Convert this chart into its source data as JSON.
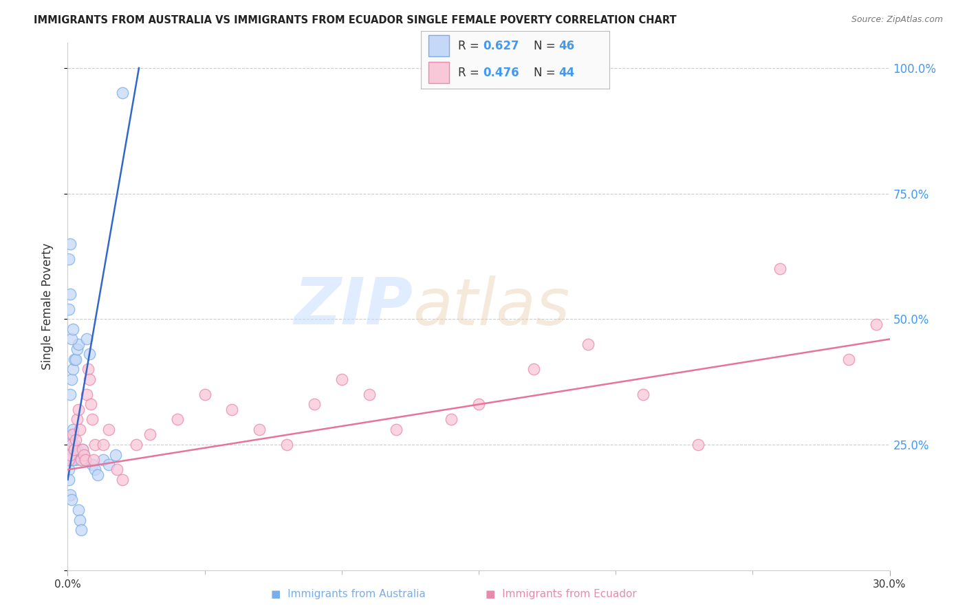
{
  "title": "IMMIGRANTS FROM AUSTRALIA VS IMMIGRANTS FROM ECUADOR SINGLE FEMALE POVERTY CORRELATION CHART",
  "source": "Source: ZipAtlas.com",
  "ylabel": "Single Female Poverty",
  "x_range": [
    0.0,
    0.3
  ],
  "y_range": [
    0.0,
    1.05
  ],
  "legend_r1": "0.627",
  "legend_n1": "46",
  "legend_r2": "0.476",
  "legend_n2": "44",
  "australia_scatter_face": "#C5D8F7",
  "australia_scatter_edge": "#7BAEE8",
  "ecuador_scatter_face": "#F9C8D8",
  "ecuador_scatter_edge": "#E88AAA",
  "australia_line_color": "#3366CC",
  "ecuador_line_color": "#E8739A",
  "right_axis_color": "#4499EE",
  "label_color": "#333333",
  "grid_color": "#CCCCCC",
  "background_color": "#FFFFFF",
  "watermark_zip": "ZIP",
  "watermark_atlas": "atlas",
  "watermark_color": "#D0E8FF",
  "aus_line_x0": 0.0,
  "aus_line_y0": 0.18,
  "aus_line_x1": 0.026,
  "aus_line_y1": 1.0,
  "ecu_line_x0": 0.0,
  "ecu_line_y0": 0.2,
  "ecu_line_x1": 0.3,
  "ecu_line_y1": 0.46,
  "australia_x": [
    0.0005,
    0.001,
    0.0015,
    0.0005,
    0.002,
    0.001,
    0.0015,
    0.002,
    0.0025,
    0.003,
    0.0035,
    0.004,
    0.005,
    0.0055,
    0.006,
    0.0065,
    0.001,
    0.0015,
    0.002,
    0.0025,
    0.003,
    0.0035,
    0.004,
    0.0005,
    0.001,
    0.0015,
    0.002,
    0.008,
    0.009,
    0.01,
    0.011,
    0.004,
    0.0045,
    0.005,
    0.007,
    0.0005,
    0.001,
    0.013,
    0.015,
    0.0175,
    0.0005,
    0.001,
    0.0015,
    0.002,
    0.0025,
    0.02
  ],
  "australia_y": [
    0.2,
    0.22,
    0.22,
    0.25,
    0.23,
    0.26,
    0.27,
    0.28,
    0.25,
    0.22,
    0.24,
    0.23,
    0.22,
    0.24,
    0.23,
    0.22,
    0.35,
    0.38,
    0.4,
    0.42,
    0.42,
    0.44,
    0.45,
    0.52,
    0.55,
    0.46,
    0.48,
    0.43,
    0.21,
    0.2,
    0.19,
    0.12,
    0.1,
    0.08,
    0.46,
    0.62,
    0.65,
    0.22,
    0.21,
    0.23,
    0.18,
    0.15,
    0.14,
    0.22,
    0.24,
    0.95
  ],
  "ecuador_x": [
    0.0005,
    0.001,
    0.0015,
    0.002,
    0.0025,
    0.003,
    0.0035,
    0.004,
    0.0045,
    0.005,
    0.0055,
    0.006,
    0.0065,
    0.007,
    0.0075,
    0.008,
    0.0085,
    0.009,
    0.0095,
    0.01,
    0.013,
    0.015,
    0.018,
    0.02,
    0.025,
    0.03,
    0.04,
    0.05,
    0.06,
    0.07,
    0.08,
    0.09,
    0.1,
    0.11,
    0.12,
    0.14,
    0.15,
    0.17,
    0.19,
    0.21,
    0.23,
    0.26,
    0.285,
    0.295
  ],
  "ecuador_y": [
    0.22,
    0.23,
    0.25,
    0.27,
    0.24,
    0.26,
    0.3,
    0.32,
    0.28,
    0.22,
    0.24,
    0.23,
    0.22,
    0.35,
    0.4,
    0.38,
    0.33,
    0.3,
    0.22,
    0.25,
    0.25,
    0.28,
    0.2,
    0.18,
    0.25,
    0.27,
    0.3,
    0.35,
    0.32,
    0.28,
    0.25,
    0.33,
    0.38,
    0.35,
    0.28,
    0.3,
    0.33,
    0.4,
    0.45,
    0.35,
    0.25,
    0.6,
    0.42,
    0.49
  ]
}
